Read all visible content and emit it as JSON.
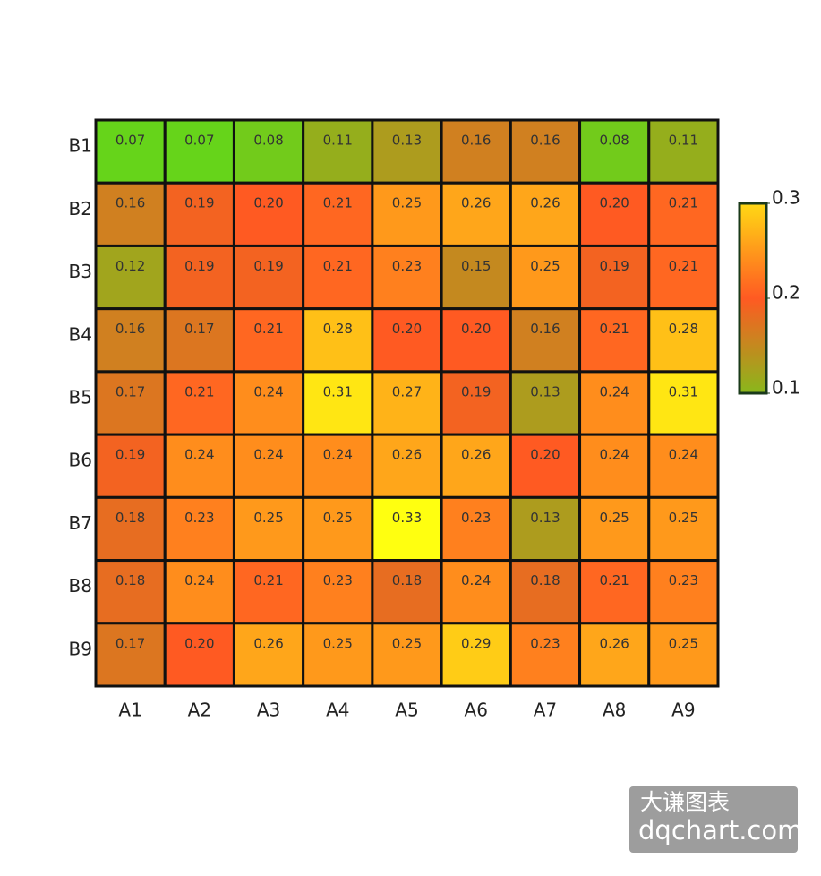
{
  "chart_data": {
    "type": "heatmap",
    "x_categories": [
      "A1",
      "A2",
      "A3",
      "A4",
      "A5",
      "A6",
      "A7",
      "A8",
      "A9"
    ],
    "y_categories": [
      "B1",
      "B2",
      "B3",
      "B4",
      "B5",
      "B6",
      "B7",
      "B8",
      "B9"
    ],
    "values": [
      [
        0.07,
        0.07,
        0.08,
        0.11,
        0.13,
        0.16,
        0.16,
        0.08,
        0.11
      ],
      [
        0.16,
        0.19,
        0.2,
        0.21,
        0.25,
        0.26,
        0.26,
        0.2,
        0.21
      ],
      [
        0.12,
        0.19,
        0.19,
        0.21,
        0.23,
        0.15,
        0.25,
        0.19,
        0.21
      ],
      [
        0.16,
        0.17,
        0.21,
        0.28,
        0.2,
        0.2,
        0.16,
        0.21,
        0.28
      ],
      [
        0.17,
        0.21,
        0.24,
        0.31,
        0.27,
        0.19,
        0.13,
        0.24,
        0.31
      ],
      [
        0.19,
        0.24,
        0.24,
        0.24,
        0.26,
        0.26,
        0.2,
        0.24,
        0.24
      ],
      [
        0.18,
        0.23,
        0.25,
        0.25,
        0.33,
        0.23,
        0.13,
        0.25,
        0.25
      ],
      [
        0.18,
        0.24,
        0.21,
        0.23,
        0.18,
        0.24,
        0.18,
        0.21,
        0.23
      ],
      [
        0.17,
        0.2,
        0.26,
        0.25,
        0.25,
        0.29,
        0.23,
        0.26,
        0.25
      ]
    ],
    "value_labels": [
      [
        "0.07",
        "0.07",
        "0.08",
        "0.11",
        "0.13",
        "0.16",
        "0.16",
        "0.08",
        "0.11"
      ],
      [
        "0.16",
        "0.19",
        "0.20",
        "0.21",
        "0.25",
        "0.26",
        "0.26",
        "0.20",
        "0.21"
      ],
      [
        "0.12",
        "0.19",
        "0.19",
        "0.21",
        "0.23",
        "0.15",
        "0.25",
        "0.19",
        "0.21"
      ],
      [
        "0.16",
        "0.17",
        "0.21",
        "0.28",
        "0.20",
        "0.20",
        "0.16",
        "0.21",
        "0.28"
      ],
      [
        "0.17",
        "0.21",
        "0.24",
        "0.31",
        "0.27",
        "0.19",
        "0.13",
        "0.24",
        "0.31"
      ],
      [
        "0.19",
        "0.24",
        "0.24",
        "0.24",
        "0.26",
        "0.26",
        "0.20",
        "0.24",
        "0.24"
      ],
      [
        "0.18",
        "0.23",
        "0.25",
        "0.25",
        "0.33",
        "0.23",
        "0.13",
        "0.25",
        "0.25"
      ],
      [
        "0.18",
        "0.24",
        "0.21",
        "0.23",
        "0.18",
        "0.24",
        "0.18",
        "0.21",
        "0.23"
      ],
      [
        "0.17",
        "0.20",
        "0.26",
        "0.25",
        "0.25",
        "0.29",
        "0.23",
        "0.26",
        "0.25"
      ]
    ],
    "colormap": [
      "#66d41a",
      "#ff5a22",
      "#ffff10"
    ],
    "clim": [
      0.07,
      0.33
    ],
    "colorbar_lim": [
      0.1,
      0.3
    ],
    "colorbar_ticks": [
      0.1,
      0.2,
      0.3
    ],
    "watermark": [
      "大谦图表",
      "dqchart.com"
    ]
  }
}
